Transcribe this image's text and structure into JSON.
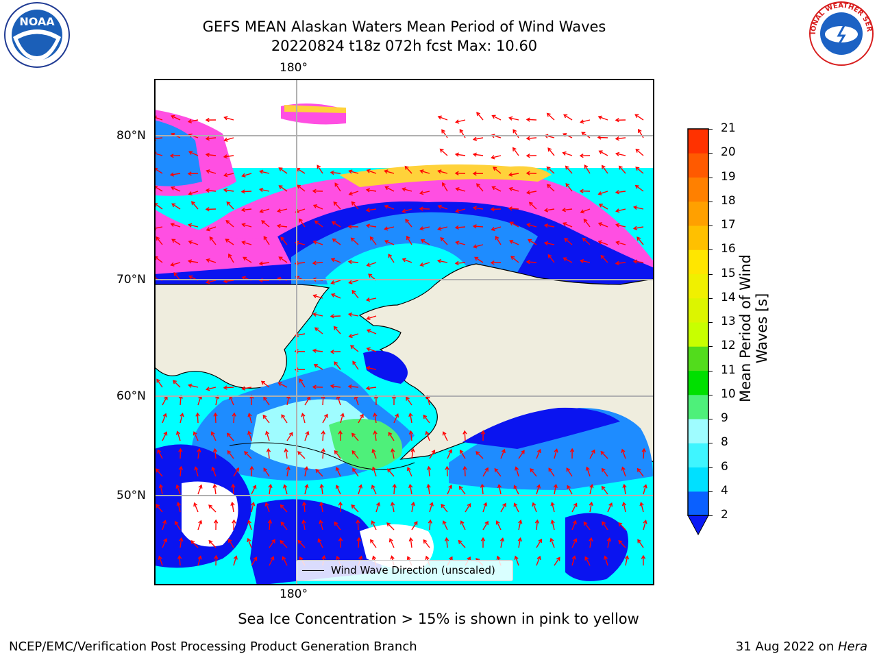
{
  "title": {
    "line1": "GEFS MEAN Alaskan Waters Mean Period of Wind Waves",
    "line2": "20220824 t18z 072h fcst   Max: 10.60"
  },
  "map": {
    "lon_labels": {
      "top": "180°",
      "bottom": "180°"
    },
    "lat_labels": [
      "80°N",
      "70°N",
      "60°N",
      "50°N"
    ],
    "legend_text": "Wind Wave Direction (unscaled)",
    "colors": {
      "land": "#efedde",
      "sea_ice_pink": "#ff4fe2",
      "sea_ice_yellow": "#ffd23a",
      "deep_blue": "#0a14f0",
      "mid_blue": "#1e8cff",
      "cyan": "#00ffff",
      "light_cyan": "#9ffcff",
      "green": "#4ef07a",
      "arrow": "#ff0000"
    }
  },
  "colorbar": {
    "label": "Mean Period of Wind Waves [s]",
    "ticks": [
      "2",
      "4",
      "6",
      "8",
      "9",
      "10",
      "11",
      "12",
      "13",
      "14",
      "15",
      "16",
      "17",
      "18",
      "19",
      "20",
      "21"
    ],
    "colors": [
      "#0a60ff",
      "#00e0ff",
      "#3ff5ff",
      "#9ffcff",
      "#4ef07a",
      "#00e000",
      "#52dc1c",
      "#c8ff00",
      "#dcf500",
      "#f0f000",
      "#ffe600",
      "#ffc000",
      "#ffa000",
      "#ff8000",
      "#ff5a00",
      "#ff3200",
      "#ff0000"
    ],
    "extend_color": "#0a1af5"
  },
  "subtitle": "Sea Ice Concentration > 15% is shown in pink to yellow",
  "footer": {
    "left": "NCEP/EMC/Verification Post Processing Product Generation Branch",
    "right_date": "31 Aug 2022 on ",
    "right_machine": "Hera"
  },
  "logos": {
    "noaa": "NOAA",
    "nws_ring": "NATIONAL WEATHER SERVICE"
  }
}
